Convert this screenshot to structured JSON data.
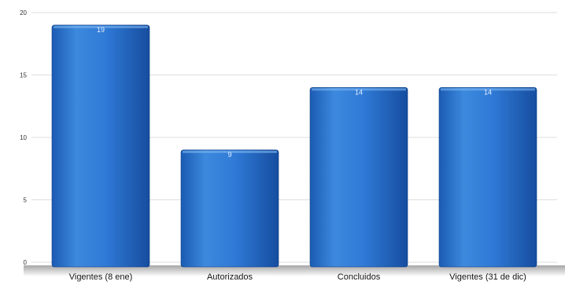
{
  "chart_data": {
    "type": "bar",
    "title": "",
    "xlabel": "",
    "ylabel": "",
    "categories": [
      "Vigentes (8 ene)",
      "Autorizados",
      "Concluidos",
      "Vigentes (31 de dic)"
    ],
    "values": [
      19,
      9,
      14,
      14
    ],
    "data_labels": [
      "19",
      "9",
      "14",
      "14"
    ],
    "ylim": [
      0,
      20
    ],
    "yticks": [
      0,
      5,
      10,
      15,
      20
    ],
    "grid": true,
    "legend": "none",
    "colors": {
      "bar_light": "#4f9be6",
      "bar_mid": "#2a74cf",
      "bar_dark": "#154a9c",
      "grid": "#dddddd"
    }
  }
}
